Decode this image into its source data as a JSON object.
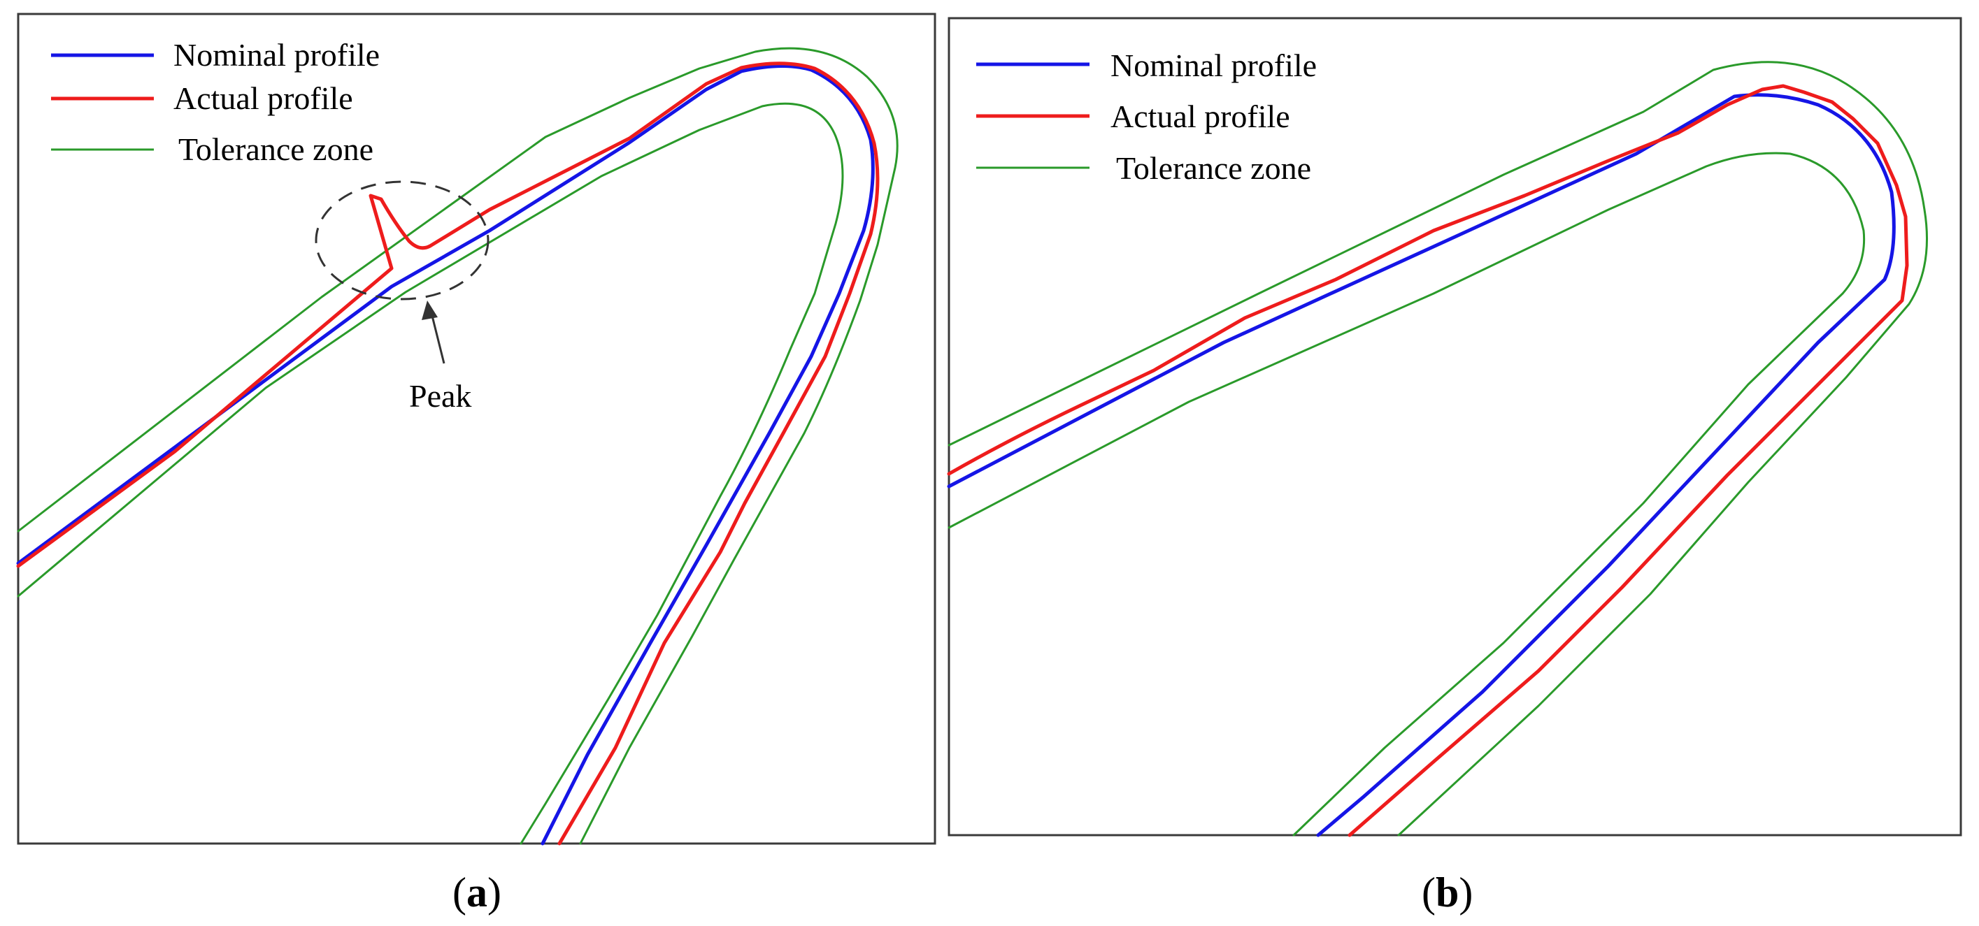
{
  "colors": {
    "nominal": "#1515e6",
    "actual": "#ee1c1c",
    "tolerance": "#2a9a2a",
    "annotation": "#333333"
  },
  "legend": {
    "nominal": "Nominal profile",
    "actual": "Actual profile",
    "tolerance": "Tolerance zone"
  },
  "panels": [
    {
      "id": "a",
      "caption_open": "(",
      "caption_letter": "a",
      "caption_close": ")",
      "annotation": "Peak"
    },
    {
      "id": "b",
      "caption_open": "(",
      "caption_letter": "b",
      "caption_close": ")"
    }
  ]
}
